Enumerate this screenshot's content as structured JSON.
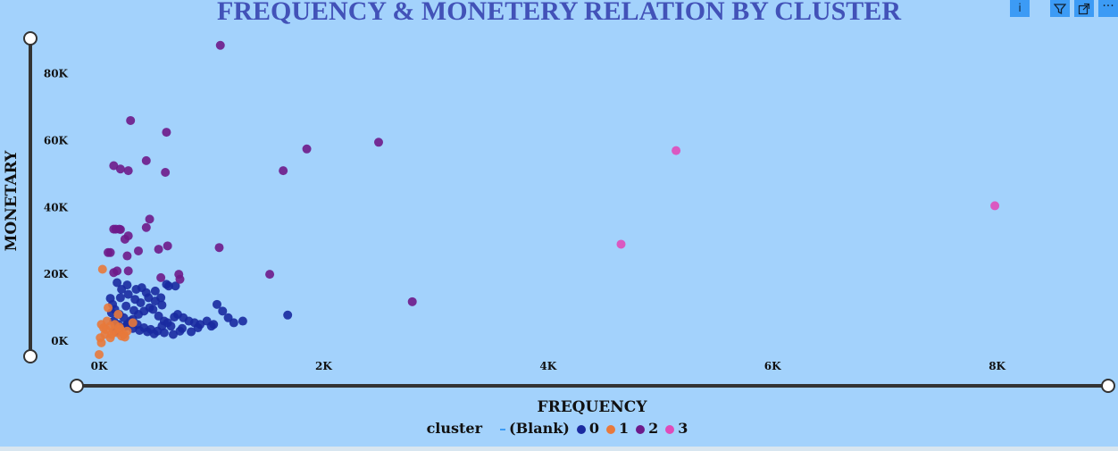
{
  "chart_data": {
    "type": "scatter",
    "title": "FREQUENCY & MONETERY RELATION BY CLUSTER",
    "xlabel": "FREQUENCY",
    "ylabel": "MONETARY",
    "xlim": [
      0,
      9000
    ],
    "ylim": [
      -4000,
      90000
    ],
    "x_ticks": [
      0,
      2000,
      4000,
      6000,
      8000
    ],
    "x_tick_labels": [
      "0K",
      "2K",
      "4K",
      "6K",
      "8K"
    ],
    "y_ticks": [
      0,
      20000,
      40000,
      60000,
      80000
    ],
    "y_tick_labels": [
      "0K",
      "20K",
      "40K",
      "60K",
      "80K"
    ],
    "grid": false,
    "legend_title": "cluster",
    "legend_position": "bottom",
    "series": [
      {
        "name": "(Blank)",
        "color": "#3c9bf5",
        "points": []
      },
      {
        "name": "0",
        "color": "#1a2aa0",
        "points": [
          [
            600,
            17000
          ],
          [
            620,
            16500
          ],
          [
            550,
            13000
          ],
          [
            500,
            12000
          ],
          [
            450,
            10000
          ],
          [
            400,
            9000
          ],
          [
            350,
            8000
          ],
          [
            300,
            6500
          ],
          [
            250,
            5000
          ],
          [
            200,
            4000
          ],
          [
            150,
            3000
          ],
          [
            700,
            8000
          ],
          [
            750,
            7000
          ],
          [
            800,
            6000
          ],
          [
            850,
            5500
          ],
          [
            900,
            5000
          ],
          [
            1000,
            4500
          ],
          [
            1050,
            11000
          ],
          [
            1100,
            9000
          ],
          [
            1150,
            7000
          ],
          [
            1200,
            5500
          ],
          [
            1280,
            6000
          ],
          [
            1680,
            7800
          ],
          [
            680,
            16500
          ],
          [
            160,
            17500
          ],
          [
            200,
            15500
          ],
          [
            260,
            14000
          ],
          [
            320,
            12500
          ],
          [
            380,
            16000
          ],
          [
            420,
            14500
          ],
          [
            480,
            9500
          ],
          [
            530,
            7500
          ],
          [
            580,
            6000
          ],
          [
            640,
            4500
          ],
          [
            720,
            3000
          ],
          [
            100,
            12800
          ],
          [
            120,
            11000
          ],
          [
            140,
            9500
          ],
          [
            180,
            8000
          ],
          [
            220,
            7000
          ],
          [
            280,
            6000
          ],
          [
            340,
            5000
          ],
          [
            400,
            4000
          ],
          [
            460,
            3500
          ],
          [
            520,
            3000
          ],
          [
            580,
            2500
          ],
          [
            660,
            2000
          ],
          [
            740,
            3800
          ],
          [
            960,
            6000
          ],
          [
            1020,
            5000
          ],
          [
            880,
            4000
          ],
          [
            820,
            2800
          ],
          [
            130,
            6000
          ],
          [
            170,
            5000
          ],
          [
            240,
            4500
          ],
          [
            300,
            3800
          ],
          [
            360,
            3200
          ],
          [
            430,
            2800
          ],
          [
            490,
            2200
          ],
          [
            560,
            4500
          ],
          [
            610,
            5500
          ],
          [
            670,
            7200
          ],
          [
            110,
            8500
          ],
          [
            240,
            10500
          ],
          [
            310,
            9200
          ],
          [
            370,
            11500
          ],
          [
            440,
            13000
          ],
          [
            500,
            15000
          ],
          [
            560,
            10800
          ],
          [
            190,
            13000
          ],
          [
            250,
            16800
          ],
          [
            330,
            15500
          ]
        ]
      },
      {
        "name": "1",
        "color": "#e8793b",
        "points": [
          [
            30,
            21500
          ],
          [
            80,
            10000
          ],
          [
            170,
            8000
          ],
          [
            300,
            5500
          ],
          [
            20,
            5000
          ],
          [
            40,
            4000
          ],
          [
            60,
            3500
          ],
          [
            100,
            4500
          ],
          [
            130,
            3000
          ],
          [
            160,
            2500
          ],
          [
            190,
            3500
          ],
          [
            220,
            2000
          ],
          [
            250,
            3000
          ],
          [
            200,
            1500
          ],
          [
            100,
            1000
          ],
          [
            50,
            2000
          ],
          [
            10,
            1000
          ],
          [
            20,
            -500
          ],
          [
            0,
            -4000
          ],
          [
            70,
            6000
          ],
          [
            110,
            2000
          ],
          [
            140,
            5000
          ],
          [
            180,
            4200
          ],
          [
            230,
            1200
          ]
        ]
      },
      {
        "name": "2",
        "color": "#6e1a8a",
        "points": [
          [
            1080,
            88500
          ],
          [
            280,
            66000
          ],
          [
            600,
            62500
          ],
          [
            260,
            51000
          ],
          [
            130,
            52500
          ],
          [
            190,
            51500
          ],
          [
            420,
            54000
          ],
          [
            590,
            50500
          ],
          [
            1850,
            57500
          ],
          [
            2490,
            59500
          ],
          [
            1640,
            51000
          ],
          [
            80,
            26500
          ],
          [
            100,
            26500
          ],
          [
            130,
            33500
          ],
          [
            150,
            33500
          ],
          [
            180,
            33500
          ],
          [
            190,
            33400
          ],
          [
            230,
            30500
          ],
          [
            260,
            31500
          ],
          [
            350,
            27000
          ],
          [
            450,
            36500
          ],
          [
            420,
            34000
          ],
          [
            530,
            27500
          ],
          [
            610,
            28500
          ],
          [
            1070,
            28000
          ],
          [
            250,
            25500
          ],
          [
            130,
            20500
          ],
          [
            160,
            21000
          ],
          [
            260,
            21000
          ],
          [
            550,
            19000
          ],
          [
            710,
            20000
          ],
          [
            1520,
            20000
          ],
          [
            2790,
            11800
          ],
          [
            720,
            18500
          ]
        ]
      },
      {
        "name": "3",
        "color": "#e04bba",
        "points": [
          [
            5140,
            57000
          ],
          [
            7980,
            40500
          ],
          [
            4650,
            29000
          ]
        ]
      }
    ]
  }
}
